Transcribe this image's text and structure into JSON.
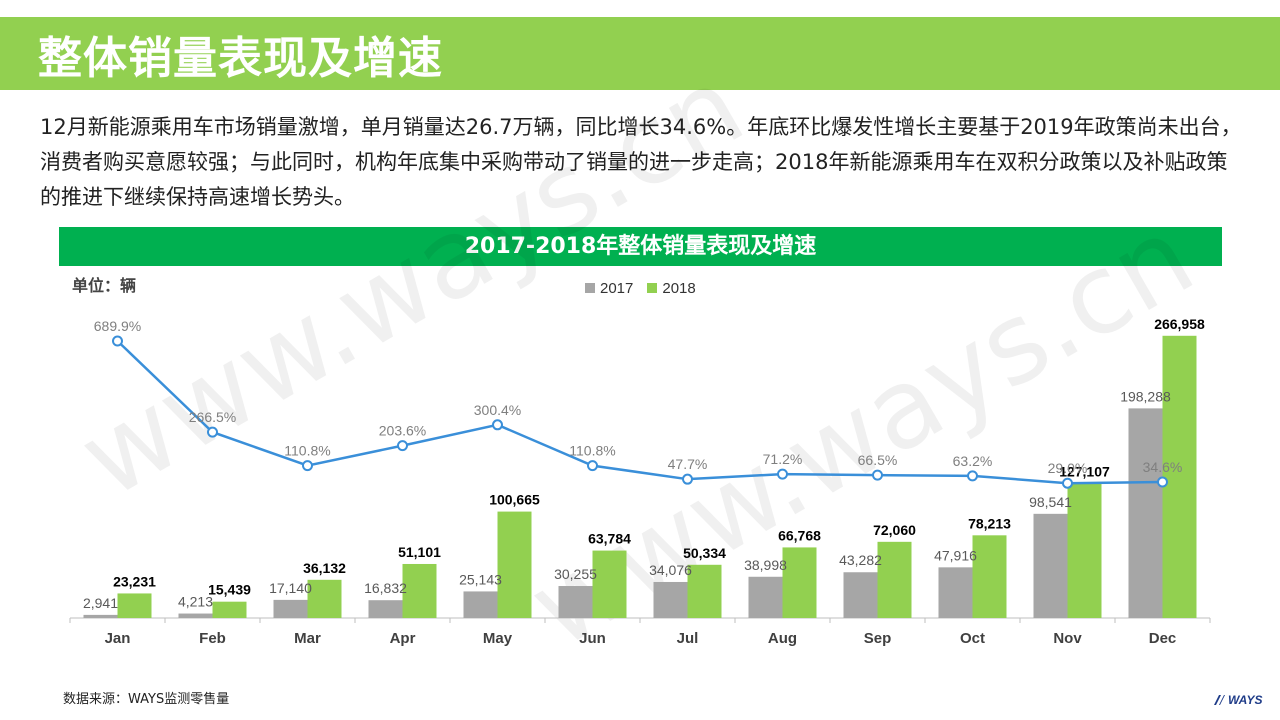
{
  "page": {
    "title": "整体销量表现及增速",
    "intro": "12月新能源乘用车市场销量激增，单月销量达26.7万辆，同比增长34.6%。年底环比爆发性增长主要基于2019年政策尚未出台，消费者购买意愿较强；与此同时，机构年底集中采购带动了销量的进一步走高；2018年新能源乘用车在双积分政策以及补贴政策的推进下继续保持高速增长势头。",
    "source": "数据来源：WAYS监测零售量",
    "logo_text": "WAYS",
    "watermark_text": "www.ways.cn"
  },
  "colors": {
    "title_bar": "#92d050",
    "chart_header": "#00b050",
    "series_2017": "#a6a6a6",
    "series_2018": "#92d050",
    "growth_line": "#3a8fd9"
  },
  "chart_data": {
    "type": "bar",
    "title": "2017-2018年整体销量表现及增速",
    "unit_label": "单位：辆",
    "legend_position": "top-center",
    "categories": [
      "Jan",
      "Feb",
      "Mar",
      "Apr",
      "May",
      "Jun",
      "Jul",
      "Aug",
      "Sep",
      "Oct",
      "Nov",
      "Dec"
    ],
    "series": [
      {
        "name": "2017",
        "values": [
          2941,
          4213,
          17140,
          16832,
          25143,
          30255,
          34076,
          38998,
          43282,
          47916,
          98541,
          198288
        ],
        "labels": [
          "2,941",
          "4,213",
          "17,140",
          "16,832",
          "25,143",
          "30,255",
          "34,076",
          "38,998",
          "43,282",
          "47,916",
          "98,541",
          "198,288"
        ]
      },
      {
        "name": "2018",
        "values": [
          23231,
          15439,
          36132,
          51101,
          100665,
          63784,
          50334,
          66768,
          72060,
          78213,
          127107,
          266958
        ],
        "labels": [
          "23,231",
          "15,439",
          "36,132",
          "51,101",
          "100,665",
          "63,784",
          "50,334",
          "66,768",
          "72,060",
          "78,213",
          "127,107",
          "266,958"
        ]
      }
    ],
    "growth": {
      "type": "line",
      "values": [
        689.9,
        266.5,
        110.8,
        203.6,
        300.4,
        110.8,
        47.7,
        71.2,
        66.5,
        63.2,
        29.0,
        34.6
      ],
      "labels": [
        "689.9%",
        "266.5%",
        "110.8%",
        "203.6%",
        "300.4%",
        "110.8%",
        "47.7%",
        "71.2%",
        "66.5%",
        "63.2%",
        "29.0%",
        "34.6%"
      ]
    },
    "ylim": [
      0,
      280000
    ],
    "grid": false
  }
}
